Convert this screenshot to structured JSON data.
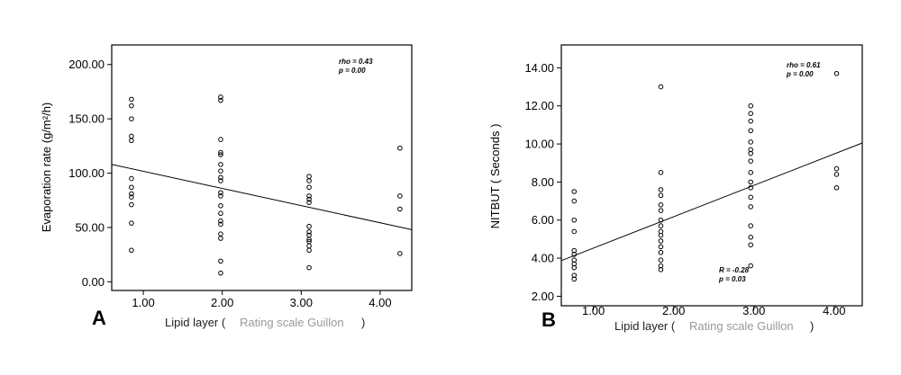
{
  "chart_data": [
    {
      "type": "scatter",
      "panel_label": "A",
      "ylabel": "Evaporation rate (g/m²/h)",
      "xlabel_parts": [
        "Lipid layer (",
        "Rating scale Guillon",
        ")"
      ],
      "x_ticks": [
        "1.00",
        "2.00",
        "3.00",
        "4.00"
      ],
      "y_ticks": [
        "0.00",
        "50.00",
        "100.00",
        "150.00",
        "200.00"
      ],
      "xlim": [
        0.6,
        4.4
      ],
      "ylim": [
        -8,
        218
      ],
      "annotations": [
        "rho = 0.43",
        "p = 0.00"
      ],
      "points": [
        [
          0.85,
          168
        ],
        [
          0.85,
          162
        ],
        [
          0.85,
          150
        ],
        [
          0.85,
          134
        ],
        [
          0.85,
          130
        ],
        [
          0.85,
          95
        ],
        [
          0.85,
          87
        ],
        [
          0.85,
          81
        ],
        [
          0.85,
          78
        ],
        [
          0.85,
          71
        ],
        [
          0.85,
          54
        ],
        [
          0.85,
          29
        ],
        [
          1.98,
          170
        ],
        [
          1.98,
          167
        ],
        [
          1.98,
          131
        ],
        [
          1.98,
          119
        ],
        [
          1.98,
          117
        ],
        [
          1.98,
          108
        ],
        [
          1.98,
          102
        ],
        [
          1.98,
          96
        ],
        [
          1.98,
          93
        ],
        [
          1.98,
          82
        ],
        [
          1.98,
          79
        ],
        [
          1.98,
          70
        ],
        [
          1.98,
          63
        ],
        [
          1.98,
          56
        ],
        [
          1.98,
          53
        ],
        [
          1.98,
          44
        ],
        [
          1.98,
          40
        ],
        [
          1.98,
          19
        ],
        [
          1.98,
          8
        ],
        [
          3.1,
          97
        ],
        [
          3.1,
          93
        ],
        [
          3.1,
          87
        ],
        [
          3.1,
          79
        ],
        [
          3.1,
          76
        ],
        [
          3.1,
          73
        ],
        [
          3.1,
          51
        ],
        [
          3.1,
          46
        ],
        [
          3.1,
          43
        ],
        [
          3.1,
          39
        ],
        [
          3.1,
          37
        ],
        [
          3.1,
          33
        ],
        [
          3.1,
          29
        ],
        [
          3.1,
          13
        ],
        [
          4.25,
          123
        ],
        [
          4.25,
          79
        ],
        [
          4.25,
          67
        ],
        [
          4.25,
          26
        ]
      ],
      "fit_line": {
        "x": [
          0.6,
          4.4
        ],
        "y": [
          108,
          48
        ]
      }
    },
    {
      "type": "scatter",
      "panel_label": "B",
      "ylabel": "NITBUT ( Seconds )",
      "xlabel_parts": [
        "Lipid layer (",
        "Rating scale Guillon",
        ")"
      ],
      "x_ticks": [
        "1.00",
        "2.00",
        "3.00",
        "4.00"
      ],
      "y_ticks": [
        "2.00",
        "4.00",
        "6.00",
        "8.00",
        "10.00",
        "12.00",
        "14.00"
      ],
      "xlim": [
        0.6,
        4.35
      ],
      "ylim": [
        1.5,
        15.2
      ],
      "annotations": [
        "rho = 0.61",
        "p = 0.00"
      ],
      "inner_annotations": [
        "R = -0.28",
        "p = 0.03"
      ],
      "points": [
        [
          0.76,
          7.5
        ],
        [
          0.76,
          7.0
        ],
        [
          0.76,
          6.0
        ],
        [
          0.76,
          5.4
        ],
        [
          0.76,
          4.4
        ],
        [
          0.76,
          4.2
        ],
        [
          0.76,
          3.9
        ],
        [
          0.76,
          3.7
        ],
        [
          0.76,
          3.5
        ],
        [
          0.76,
          3.1
        ],
        [
          0.76,
          2.9
        ],
        [
          1.84,
          13.0
        ],
        [
          1.84,
          8.5
        ],
        [
          1.84,
          7.6
        ],
        [
          1.84,
          7.3
        ],
        [
          1.84,
          6.8
        ],
        [
          1.84,
          6.5
        ],
        [
          1.84,
          6.0
        ],
        [
          1.84,
          5.7
        ],
        [
          1.84,
          5.4
        ],
        [
          1.84,
          5.2
        ],
        [
          1.84,
          4.9
        ],
        [
          1.84,
          4.6
        ],
        [
          1.84,
          4.3
        ],
        [
          1.84,
          3.9
        ],
        [
          1.84,
          3.6
        ],
        [
          1.84,
          3.4
        ],
        [
          2.96,
          12.0
        ],
        [
          2.96,
          11.6
        ],
        [
          2.96,
          11.2
        ],
        [
          2.96,
          10.7
        ],
        [
          2.96,
          10.1
        ],
        [
          2.96,
          9.7
        ],
        [
          2.96,
          9.5
        ],
        [
          2.96,
          9.1
        ],
        [
          2.96,
          8.5
        ],
        [
          2.96,
          8.0
        ],
        [
          2.96,
          7.7
        ],
        [
          2.96,
          7.2
        ],
        [
          2.96,
          6.7
        ],
        [
          2.96,
          5.7
        ],
        [
          2.96,
          5.1
        ],
        [
          2.96,
          4.7
        ],
        [
          2.96,
          3.6
        ],
        [
          4.03,
          13.7
        ],
        [
          4.03,
          8.7
        ],
        [
          4.03,
          8.4
        ],
        [
          4.03,
          7.7
        ]
      ],
      "fit_line": {
        "x": [
          0.6,
          4.35
        ],
        "y": [
          3.87,
          10.05
        ]
      }
    }
  ]
}
